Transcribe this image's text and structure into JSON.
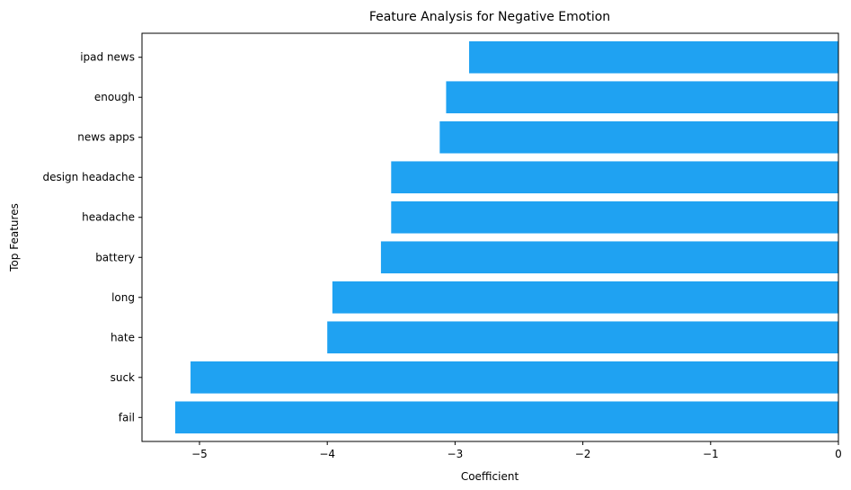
{
  "chart_data": {
    "type": "bar",
    "orientation": "horizontal",
    "title": "Feature Analysis for Negative Emotion",
    "xlabel": "Coefficient",
    "ylabel": "Top Features",
    "categories": [
      "fail",
      "suck",
      "hate",
      "long",
      "battery",
      "headache",
      "design headache",
      "news apps",
      "enough",
      "ipad news"
    ],
    "values": [
      -5.19,
      -5.07,
      -4.0,
      -3.96,
      -3.58,
      -3.5,
      -3.5,
      -3.12,
      -3.07,
      -2.89
    ],
    "xlim": [
      -5.45,
      0
    ],
    "xticks": [
      -5,
      -4,
      -3,
      -2,
      -1,
      0
    ],
    "xtick_labels": [
      "−5",
      "−4",
      "−3",
      "−2",
      "−1",
      "0"
    ],
    "bar_color": "#1fa2f2",
    "grid": false
  }
}
